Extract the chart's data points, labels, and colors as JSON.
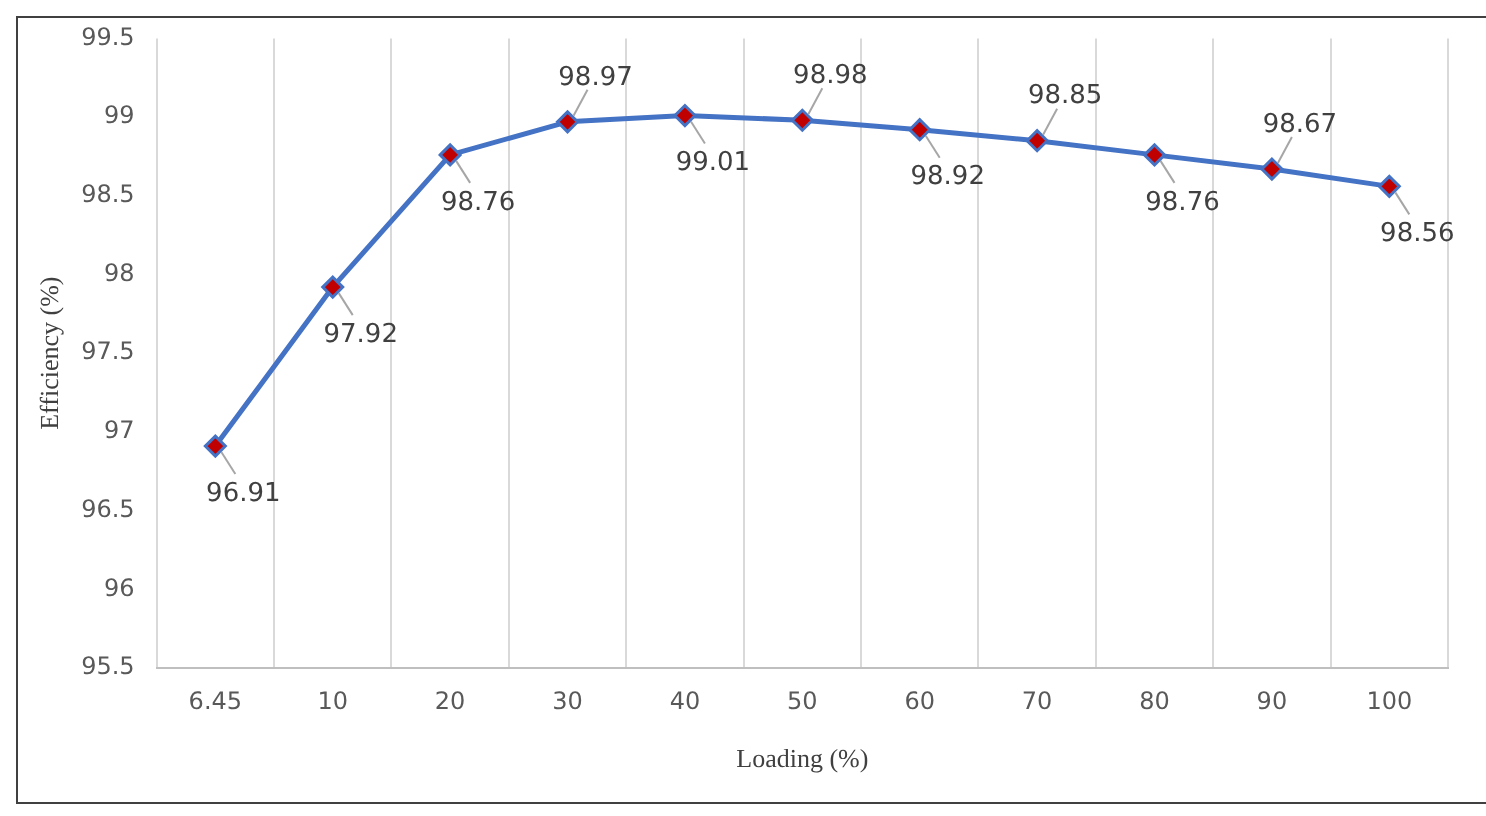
{
  "chart_data": {
    "type": "line",
    "xlabel": "Loading (%)",
    "ylabel": "Efficiency (%)",
    "categories": [
      "6.45",
      "10",
      "20",
      "30",
      "40",
      "50",
      "60",
      "70",
      "80",
      "90",
      "100"
    ],
    "series": [
      {
        "color": "#4472c4",
        "values": [
          96.91,
          97.92,
          98.76,
          98.97,
          99.01,
          98.98,
          98.92,
          98.85,
          98.76,
          98.67,
          98.56
        ]
      }
    ],
    "ylim": [
      95.5,
      99.5
    ],
    "yticks": [
      95.5,
      96,
      96.5,
      97,
      97.5,
      98,
      98.5,
      99,
      99.5
    ],
    "grid": "x",
    "legend": false,
    "marker": "diamond",
    "line_style": "solid",
    "data_labels": true
  }
}
